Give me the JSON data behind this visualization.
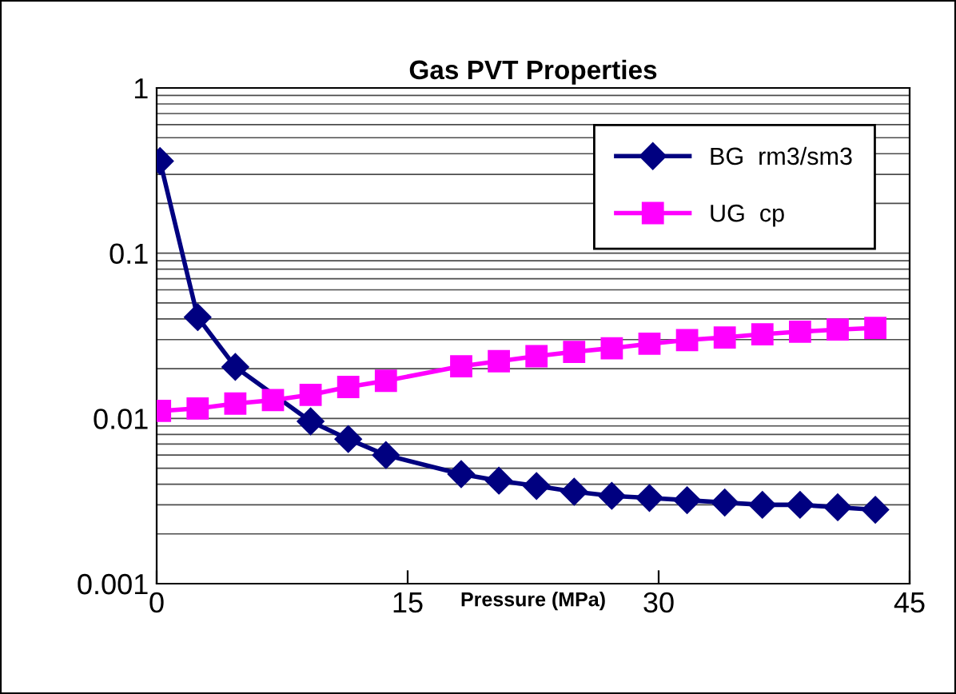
{
  "chart_data": {
    "type": "line",
    "title": "Gas PVT Properties",
    "xlabel": "Pressure (MPa)",
    "x": [
      0.2,
      2.45,
      4.7,
      6.95,
      9.2,
      11.45,
      13.7,
      18.2,
      20.45,
      22.7,
      24.95,
      27.2,
      29.45,
      31.7,
      33.95,
      36.2,
      38.45,
      40.7,
      42.95
    ],
    "series": [
      {
        "name": "BG  rm3/sm3",
        "color": "#000080",
        "marker": "diamond",
        "x": [
          0.2,
          2.45,
          4.7,
          9.2,
          11.45,
          13.7,
          18.2,
          20.45,
          22.7,
          24.95,
          27.2,
          29.45,
          31.7,
          33.95,
          36.2,
          38.45,
          40.7,
          42.95
        ],
        "values": [
          0.361,
          0.041,
          0.0205,
          0.0096,
          0.0075,
          0.006,
          0.0046,
          0.0042,
          0.0039,
          0.0036,
          0.0034,
          0.0033,
          0.0032,
          0.0031,
          0.003,
          0.003,
          0.0029,
          0.0028
        ]
      },
      {
        "name": "UG  cp",
        "color": "#ff00ff",
        "marker": "square",
        "values": [
          0.0111,
          0.0115,
          0.0123,
          0.0129,
          0.0139,
          0.0155,
          0.0169,
          0.0207,
          0.0222,
          0.0238,
          0.0253,
          0.0266,
          0.0283,
          0.0298,
          0.0309,
          0.0323,
          0.0335,
          0.0345,
          0.0353
        ]
      }
    ],
    "log": "y",
    "xlim": [
      0,
      45
    ],
    "xticks": [
      0,
      15,
      30,
      45
    ],
    "ylim": [
      0.001,
      1
    ],
    "yticks": [
      0.001,
      {
        "value": 0.002,
        "label": null
      },
      {
        "value": 0.003,
        "label": null
      },
      {
        "value": 0.004,
        "label": null
      },
      {
        "value": 0.005,
        "label": null
      },
      {
        "value": 0.006,
        "label": null
      },
      {
        "value": 0.007,
        "label": null
      },
      {
        "value": 0.008,
        "label": null
      },
      {
        "value": 0.009,
        "label": null
      },
      0.01,
      {
        "value": 0.02,
        "label": null
      },
      {
        "value": 0.03,
        "label": null
      },
      {
        "value": 0.04,
        "label": null
      },
      {
        "value": 0.05,
        "label": null
      },
      {
        "value": 0.06,
        "label": null
      },
      {
        "value": 0.07,
        "label": null
      },
      {
        "value": 0.08,
        "label": null
      },
      {
        "value": 0.09,
        "label": null
      },
      0.1,
      {
        "value": 0.2,
        "label": null
      },
      {
        "value": 0.3,
        "label": null
      },
      {
        "value": 0.4,
        "label": null
      },
      {
        "value": 0.5,
        "label": null
      },
      {
        "value": 0.6,
        "label": null
      },
      {
        "value": 0.7,
        "label": null
      },
      {
        "value": 0.8,
        "label": null
      },
      {
        "value": 0.9,
        "label": null
      },
      1
    ],
    "grid": "y",
    "legend": "top right"
  }
}
